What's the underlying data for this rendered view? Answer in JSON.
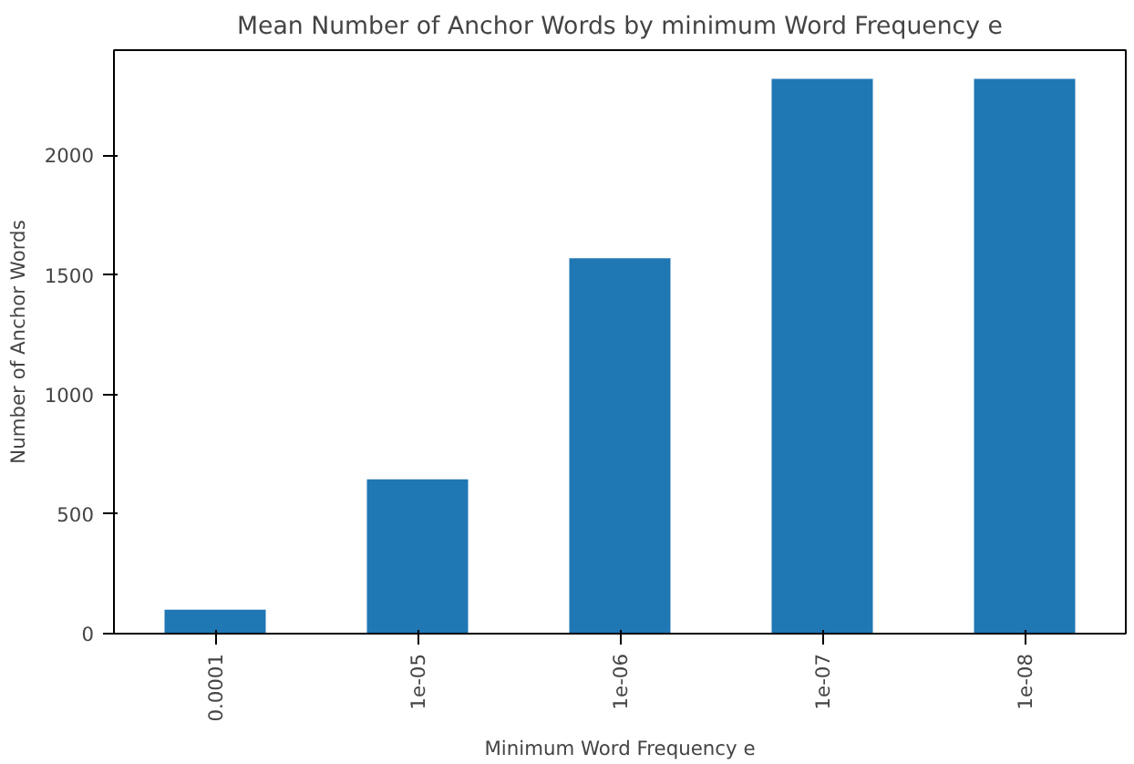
{
  "chart_data": {
    "type": "bar",
    "title": "Mean Number of Anchor Words by minimum Word Frequency e",
    "xlabel": "Minimum Word Frequency e",
    "ylabel": "Number of Anchor Words",
    "categories": [
      "0.0001",
      "1e-05",
      "1e-06",
      "1e-07",
      "1e-08"
    ],
    "values": [
      100,
      645,
      1570,
      2320,
      2320
    ],
    "color": "#1f77b4",
    "ylim": [
      0,
      2440
    ],
    "yticks": [
      0,
      500,
      1000,
      1500,
      2000
    ],
    "grid": false
  }
}
